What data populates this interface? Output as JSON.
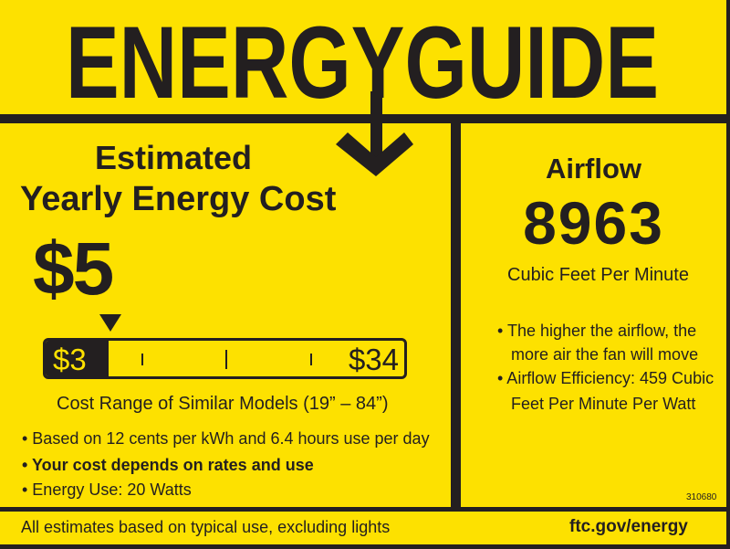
{
  "colors": {
    "label_yellow": "#fde100",
    "ink": "#231f20"
  },
  "header": {
    "title": "ENERGYGUIDE",
    "arrow_icon": "down-arrow"
  },
  "cost": {
    "heading_line1": "Estimated",
    "heading_line2": "Yearly Energy Cost",
    "value": "$5",
    "range_min": "$3",
    "range_max": "$34",
    "range_position_value": 5,
    "range_caption": "Cost Range of Similar Models (19” – 84”)",
    "bullets": [
      "• Based on 12 cents per kWh and 6.4 hours use per day",
      "• Your cost depends on rates and use",
      "• Energy Use: 20 Watts"
    ]
  },
  "airflow": {
    "heading": "Airflow",
    "value": "8963",
    "unit": "Cubic Feet Per Minute",
    "notes": [
      "• The higher the airflow, the",
      "more air the fan will move",
      "• Airflow Efficiency: 459 Cubic",
      "Feet Per Minute Per Watt"
    ],
    "label_code": "310680"
  },
  "footer": {
    "disclaimer": "All estimates based on typical use, excluding lights",
    "website": "ftc.gov/energy"
  }
}
